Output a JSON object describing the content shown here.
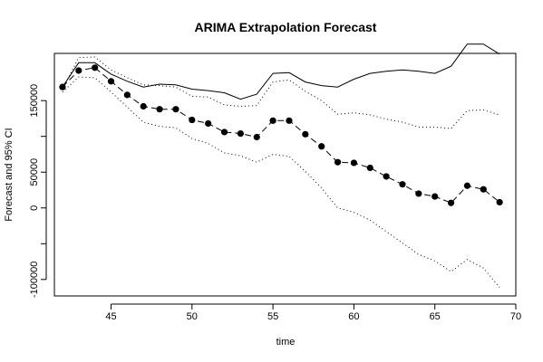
{
  "chart_data": {
    "type": "line",
    "title": "ARIMA Extrapolation Forecast",
    "xlabel": "time",
    "ylabel": "Forecast and 95% CI",
    "xlim": [
      41.5,
      70.0
    ],
    "ylim": [
      -123000,
      216000
    ],
    "x_ticks": [
      45,
      50,
      55,
      60,
      65,
      70
    ],
    "y_ticks": [
      -100000,
      -50000,
      0,
      50000,
      100000,
      150000
    ],
    "y_tick_labels": [
      "-100000",
      "",
      "0",
      "50000",
      "",
      "150000"
    ],
    "x": [
      42,
      43,
      44,
      45,
      46,
      47,
      48,
      49,
      50,
      51,
      52,
      53,
      54,
      55,
      56,
      57,
      58,
      59,
      60,
      61,
      62,
      63,
      64,
      65,
      66,
      67,
      68,
      69
    ],
    "series": [
      {
        "style": "forecast",
        "values": [
          169000,
          192000,
          196000,
          177000,
          158000,
          142000,
          138000,
          138000,
          123000,
          118000,
          106000,
          104000,
          99000,
          122000,
          122000,
          103000,
          86000,
          64000,
          63000,
          56000,
          44000,
          33000,
          20000,
          16000,
          7000,
          31000,
          26000,
          8000
        ]
      },
      {
        "style": "upper-solid",
        "values": [
          169000,
          203000,
          203000,
          187000,
          177000,
          169000,
          173000,
          172000,
          166000,
          164000,
          161000,
          152000,
          159000,
          188000,
          189000,
          176000,
          171000,
          169000,
          180000,
          188000,
          191000,
          193000,
          191000,
          188000,
          198000,
          229000,
          229000,
          215000
        ]
      },
      {
        "style": "upper-dotted",
        "values": [
          166000,
          210000,
          211000,
          193000,
          182000,
          172000,
          171000,
          169000,
          156000,
          155000,
          144000,
          142000,
          143000,
          176000,
          179000,
          163000,
          150000,
          131000,
          133000,
          130000,
          124000,
          120000,
          113000,
          113000,
          111000,
          136000,
          137000,
          130000
        ]
      },
      {
        "style": "lower-dotted",
        "values": [
          162000,
          183000,
          182000,
          162000,
          141000,
          120000,
          114000,
          112000,
          97000,
          90000,
          77000,
          73000,
          64000,
          75000,
          72000,
          51000,
          28000,
          0,
          -6000,
          -17000,
          -33000,
          -49000,
          -65000,
          -74000,
          -89000,
          -72000,
          -84000,
          -111000
        ]
      }
    ],
    "grid": false,
    "legend": "none",
    "colors": {
      "line": "#000000",
      "background": "#ffffff"
    }
  }
}
